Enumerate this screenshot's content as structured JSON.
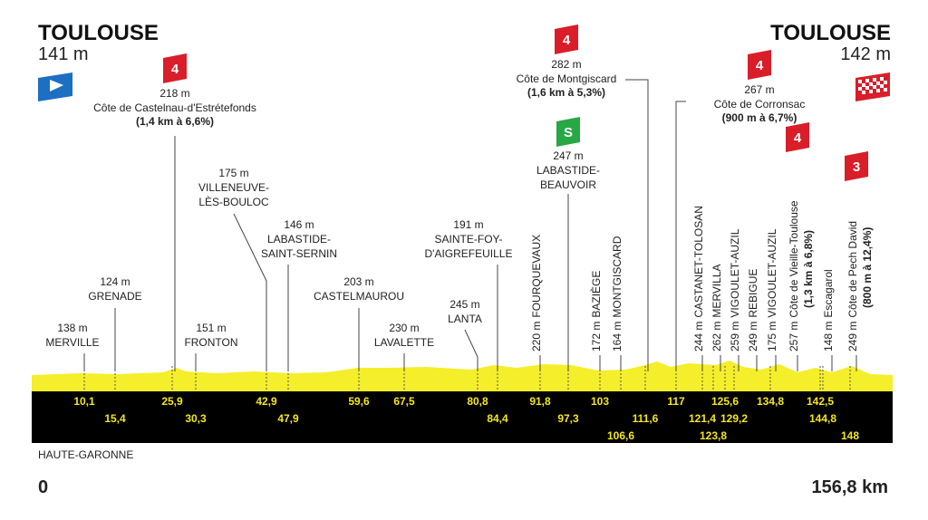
{
  "start": {
    "city": "TOULOUSE",
    "altitude": "141 m"
  },
  "finish": {
    "city": "TOULOUSE",
    "altitude": "142 m"
  },
  "region": "HAUTE-GARONNE",
  "distance_start": "0",
  "distance_end": "156,8 km",
  "km_markers": [
    "10,1",
    "15,4",
    "25,9",
    "30,3",
    "42,9",
    "47,9",
    "59,6",
    "67,5",
    "80,8",
    "84,4",
    "91,8",
    "97,3",
    "103",
    "106,6",
    "111,6",
    "117",
    "121,4",
    "123,8",
    "125,6",
    "129,2",
    "134,8",
    "142,5",
    "144,8",
    "148"
  ],
  "waypoints": [
    {
      "altitude": "138 m",
      "name": [
        "MERVILLE"
      ]
    },
    {
      "altitude": "124 m",
      "name": [
        "GRENADE"
      ]
    },
    {
      "altitude": "151 m",
      "name": [
        "FRONTON"
      ]
    },
    {
      "altitude": "175 m",
      "name": [
        "VILLENEUVE-",
        "LÈS-BOULOC"
      ]
    },
    {
      "altitude": "146 m",
      "name": [
        "LABASTIDE-",
        "SAINT-SERNIN"
      ]
    },
    {
      "altitude": "203 m",
      "name": [
        "CASTELMAUROU"
      ]
    },
    {
      "altitude": "230 m",
      "name": [
        "LAVALETTE"
      ]
    },
    {
      "altitude": "245 m",
      "name": [
        "LANTA"
      ]
    },
    {
      "altitude": "191 m",
      "name": [
        "SAINTE-FOY-",
        "D'AIGREFEUILLE"
      ]
    }
  ],
  "vertical_waypoints": [
    {
      "altitude": "220 m",
      "name": "FOURQUEVAUX"
    },
    {
      "altitude": "172 m",
      "name": "BAZIÈGE"
    },
    {
      "altitude": "164 m",
      "name": "MONTGISCARD"
    },
    {
      "altitude": "244 m",
      "name": "CASTANET-TOLOSAN"
    },
    {
      "altitude": "262 m",
      "name": "MERVILLA"
    },
    {
      "altitude": "259 m",
      "name": "VIGOULET-AUZIL"
    },
    {
      "altitude": "249 m",
      "name": "REBIGUE"
    },
    {
      "altitude": "175 m",
      "name": "VIGOULET-AUZIL"
    },
    {
      "altitude": "148 m",
      "name": "Escagarol"
    }
  ],
  "climbs": [
    {
      "category": "4",
      "altitude": "218 m",
      "name": "Côte de Castelnau-d'Estrétefonds",
      "detail": "(1,4 km à 6,6%)"
    },
    {
      "category": "4",
      "altitude": "282 m",
      "name": "Côte de Montgiscard",
      "detail": "(1,6 km à 5,3%)"
    },
    {
      "category": "4",
      "altitude": "267 m",
      "name": "Côte de Corronsac",
      "detail": "(900 m à 6,7%)"
    },
    {
      "category": "4",
      "altitude": "257 m",
      "name": "Côte de Vieille-Toulouse",
      "detail": "(1,3 km à 6,8%)"
    },
    {
      "category": "3",
      "altitude": "249 m",
      "name": "Côte de Pech David",
      "detail": "(800 m à 12,4%)"
    }
  ],
  "sprint": {
    "badge": "S",
    "altitude": "247 m",
    "name": [
      "LABASTIDE-",
      "BEAUVOIR"
    ]
  }
}
